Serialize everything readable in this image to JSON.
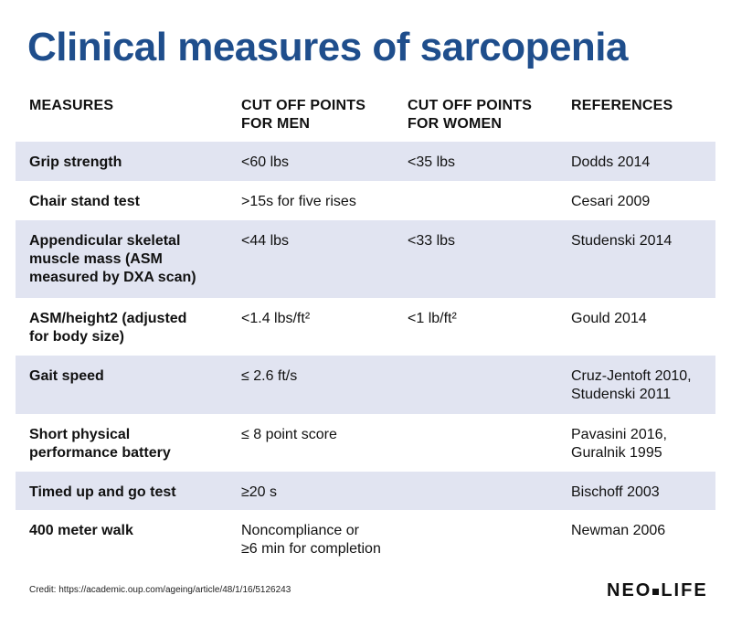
{
  "title": "Clinical measures of sarcopenia",
  "headers": {
    "measures": "MEASURES",
    "men_line1": "CUT OFF POINTS",
    "men_line2": "FOR MEN",
    "women_line1": "CUT OFF POINTS",
    "women_line2": "FOR WOMEN",
    "references": "REFERENCES"
  },
  "rows": [
    {
      "measure": [
        "Grip strength"
      ],
      "men": [
        "<60 lbs"
      ],
      "women": [
        "<35 lbs"
      ],
      "ref": [
        "Dodds 2014"
      ]
    },
    {
      "measure": [
        "Chair stand test"
      ],
      "men": [
        ">15s for five rises"
      ],
      "women": [],
      "ref": [
        "Cesari 2009"
      ]
    },
    {
      "measure": [
        "Appendicular skeletal",
        "muscle mass (ASM",
        "measured by DXA scan)"
      ],
      "men": [
        "<44 lbs"
      ],
      "women": [
        "<33 lbs"
      ],
      "ref": [
        "Studenski 2014"
      ]
    },
    {
      "measure": [
        "ASM/height2 (adjusted",
        "for body size)"
      ],
      "men": [
        "<1.4 lbs/ft²"
      ],
      "women": [
        "<1 lb/ft²"
      ],
      "ref": [
        "Gould 2014"
      ]
    },
    {
      "measure": [
        "Gait speed"
      ],
      "men": [
        "≤ 2.6 ft/s"
      ],
      "women": [],
      "ref": [
        "Cruz-Jentoft 2010,",
        "Studenski 2011"
      ]
    },
    {
      "measure": [
        "Short physical",
        "performance battery"
      ],
      "men": [
        "≤ 8 point score"
      ],
      "women": [],
      "ref": [
        "Pavasini 2016,",
        "Guralnik 1995"
      ]
    },
    {
      "measure": [
        "Timed up and go test"
      ],
      "men": [
        "≥20 s"
      ],
      "women": [],
      "ref": [
        "Bischoff 2003"
      ]
    },
    {
      "measure": [
        "400 meter walk"
      ],
      "men": [
        "Noncompliance or",
        "≥6 min for completion"
      ],
      "women": [],
      "ref": [
        "Newman 2006"
      ]
    }
  ],
  "credit": "Credit: https://academic.oup.com/ageing/article/48/1/16/5126243",
  "brand": {
    "left": "NEO",
    "right": "LIFE"
  },
  "colors": {
    "title": "#1f4e8c",
    "shaded_row": "#e1e4f1"
  }
}
